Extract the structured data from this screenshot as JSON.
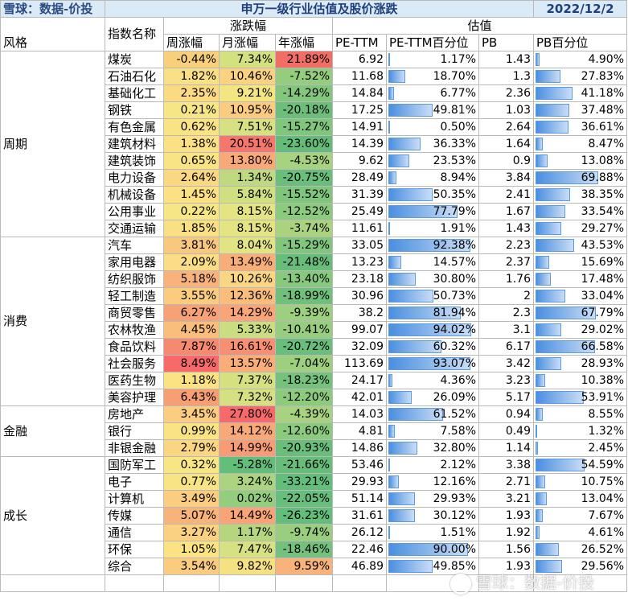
{
  "header": {
    "brand": "雪球：数据-价投",
    "title": "申万一级行业估值及股价涨跌",
    "date": "2022/12/2"
  },
  "columns": {
    "style": "风格",
    "index_name": "指数名称",
    "change_group": "涨跌幅",
    "valuation_group": "估值",
    "weekly": "周涨幅",
    "monthly": "月涨幅",
    "yearly": "年涨幅",
    "pe_ttm": "PE-TTM",
    "pe_ttm_pct": "PE-TTM百分位",
    "pb": "PB",
    "pb_pct": "PB百分位"
  },
  "groups": [
    {
      "style": "周期",
      "rows": [
        {
          "name": "煤炭",
          "week": "-0.44%",
          "month": "7.34%",
          "year": "21.89%",
          "pe": "6.92",
          "pe_pct": "1.17%",
          "pe_pct_v": 1.17,
          "pb": "1.43",
          "pb_pct": "4.90%",
          "pb_pct_v": 4.9,
          "colors": [
            "#f8cf7a",
            "#d3e27f",
            "#f26e65"
          ]
        },
        {
          "name": "石油石化",
          "week": "1.82%",
          "month": "10.46%",
          "year": "-7.52%",
          "pe": "11.68",
          "pe_pct": "18.70%",
          "pe_pct_v": 18.7,
          "pb": "1.3",
          "pb_pct": "27.83%",
          "pb_pct_v": 27.83,
          "colors": [
            "#f9e085",
            "#fad281",
            "#94cd7e"
          ]
        },
        {
          "name": "基础化工",
          "week": "2.35%",
          "month": "9.21%",
          "year": "-14.29%",
          "pe": "14.84",
          "pe_pct": "6.77%",
          "pe_pct_v": 6.77,
          "pb": "2.36",
          "pb_pct": "41.18%",
          "pb_pct_v": 41.18,
          "colors": [
            "#fadb83",
            "#f3e582",
            "#83c77c"
          ]
        },
        {
          "name": "钢铁",
          "week": "0.21%",
          "month": "10.95%",
          "year": "-20.18%",
          "pe": "17.25",
          "pe_pct": "49.81%",
          "pe_pct_v": 49.81,
          "pb": "1.03",
          "pb_pct": "37.48%",
          "pb_pct_v": 37.48,
          "colors": [
            "#f6e685",
            "#fbcc7f",
            "#6bbf7b"
          ]
        },
        {
          "name": "有色金属",
          "week": "0.62%",
          "month": "7.51%",
          "year": "-15.27%",
          "pe": "14.91",
          "pe_pct": "0.50%",
          "pe_pct_v": 0.5,
          "pb": "2.64",
          "pb_pct": "36.61%",
          "pb_pct_v": 36.61,
          "colors": [
            "#f9e485",
            "#d8e181",
            "#80c67c"
          ]
        },
        {
          "name": "建筑材料",
          "week": "1.38%",
          "month": "20.51%",
          "year": "-23.60%",
          "pe": "14.39",
          "pe_pct": "36.33%",
          "pe_pct_v": 36.33,
          "pb": "1.64",
          "pb_pct": "8.47%",
          "pb_pct_v": 8.47,
          "colors": [
            "#fbe184",
            "#f5766c",
            "#64bc7a"
          ]
        },
        {
          "name": "建筑装饰",
          "week": "0.65%",
          "month": "13.80%",
          "year": "-4.53%",
          "pe": "9.62",
          "pe_pct": "23.53%",
          "pe_pct_v": 23.53,
          "pb": "0.9",
          "pb_pct": "13.08%",
          "pb_pct_v": 13.08,
          "colors": [
            "#f9e485",
            "#f9a877",
            "#a7d27f"
          ]
        },
        {
          "name": "电力设备",
          "week": "2.64%",
          "month": "1.34%",
          "year": "-20.75%",
          "pe": "28.49",
          "pe_pct": "8.94%",
          "pe_pct_v": 8.94,
          "pb": "3.84",
          "pb_pct": "69.88%",
          "pb_pct_v": 69.88,
          "colors": [
            "#fad882",
            "#bed97f",
            "#6abe7b"
          ]
        },
        {
          "name": "机械设备",
          "week": "1.45%",
          "month": "5.84%",
          "year": "-15.52%",
          "pe": "31.39",
          "pe_pct": "50.35%",
          "pe_pct_v": 50.35,
          "pb": "2.41",
          "pb_pct": "38.35%",
          "pb_pct_v": 38.35,
          "colors": [
            "#fbe184",
            "#d0df80",
            "#7fc57c"
          ]
        },
        {
          "name": "公用事业",
          "week": "0.22%",
          "month": "8.15%",
          "year": "-12.52%",
          "pe": "25.49",
          "pe_pct": "77.79%",
          "pe_pct_v": 77.79,
          "pb": "1.67",
          "pb_pct": "33.54%",
          "pb_pct_v": 33.54,
          "colors": [
            "#f6e685",
            "#e4e482",
            "#8bcb7d"
          ]
        },
        {
          "name": "交通运输",
          "week": "1.85%",
          "month": "8.15%",
          "year": "-3.74%",
          "pe": "11.61",
          "pe_pct": "1.91%",
          "pe_pct_v": 1.91,
          "pb": "1.43",
          "pb_pct": "29.27%",
          "pb_pct_v": 29.27,
          "colors": [
            "#f9e085",
            "#e4e482",
            "#abd37f"
          ]
        }
      ]
    },
    {
      "style": "消费",
      "rows": [
        {
          "name": "汽车",
          "week": "3.81%",
          "month": "8.04%",
          "year": "-15.29%",
          "pe": "33.05",
          "pe_pct": "92.38%",
          "pe_pct_v": 92.38,
          "pb": "2.23",
          "pb_pct": "43.53%",
          "pb_pct_v": 43.53,
          "colors": [
            "#f9c87f",
            "#e2e382",
            "#80c67c"
          ]
        },
        {
          "name": "家用电器",
          "week": "2.09%",
          "month": "13.49%",
          "year": "-21.48%",
          "pe": "13.23",
          "pe_pct": "14.57%",
          "pe_pct_v": 14.57,
          "pb": "2.37",
          "pb_pct": "15.69%",
          "pb_pct_v": 15.69,
          "colors": [
            "#fadd84",
            "#f9ad78",
            "#69bd7b"
          ]
        },
        {
          "name": "纺织服饰",
          "week": "5.18%",
          "month": "10.26%",
          "year": "-13.40%",
          "pe": "23.18",
          "pe_pct": "30.80%",
          "pe_pct_v": 30.8,
          "pb": "1.76",
          "pb_pct": "17.48%",
          "pb_pct_v": 17.48,
          "colors": [
            "#f8b27a",
            "#fbd682",
            "#87c97d"
          ]
        },
        {
          "name": "轻工制造",
          "week": "3.55%",
          "month": "12.36%",
          "year": "-18.99%",
          "pe": "30.96",
          "pe_pct": "50.73%",
          "pe_pct_v": 50.73,
          "pb": "2",
          "pb_pct": "33.04%",
          "pb_pct_v": 33.04,
          "colors": [
            "#facc80",
            "#fabd7c",
            "#70c07b"
          ]
        },
        {
          "name": "商贸零售",
          "week": "6.27%",
          "month": "14.29%",
          "year": "-9.39%",
          "pe": "38.2",
          "pe_pct": "81.94%",
          "pe_pct_v": 81.94,
          "pb": "2.3",
          "pb_pct": "67.79%",
          "pb_pct_v": 67.79,
          "colors": [
            "#f7a176",
            "#f9a577",
            "#9ccf7e"
          ]
        },
        {
          "name": "农林牧渔",
          "week": "4.45%",
          "month": "5.33%",
          "year": "-10.41%",
          "pe": "99.07",
          "pe_pct": "94.02%",
          "pe_pct_v": 94.02,
          "pb": "3.1",
          "pb_pct": "29.02%",
          "pb_pct_v": 29.02,
          "colors": [
            "#f9bd7c",
            "#cadd80",
            "#97cd7e"
          ]
        },
        {
          "name": "食品饮料",
          "week": "7.87%",
          "month": "16.61%",
          "year": "-20.72%",
          "pe": "32.09",
          "pe_pct": "60.32%",
          "pe_pct_v": 60.32,
          "pb": "6.17",
          "pb_pct": "66.58%",
          "pb_pct_v": 66.58,
          "colors": [
            "#f68a71",
            "#f88f73",
            "#6abe7b"
          ]
        },
        {
          "name": "社会服务",
          "week": "8.49%",
          "month": "13.57%",
          "year": "-7.04%",
          "pe": "113.69",
          "pe_pct": "93.07%",
          "pe_pct_v": 93.07,
          "pb": "3.42",
          "pb_pct": "28.93%",
          "pb_pct_v": 28.93,
          "colors": [
            "#f8696b",
            "#f9ad78",
            "#9ecf7e"
          ]
        },
        {
          "name": "医药生物",
          "week": "1.18%",
          "month": "7.37%",
          "year": "-18.23%",
          "pe": "24.17",
          "pe_pct": "4.36%",
          "pe_pct_v": 4.36,
          "pb": "3.23",
          "pb_pct": "10.38%",
          "pb_pct_v": 10.38,
          "colors": [
            "#fbe384",
            "#d6e081",
            "#74c27c"
          ]
        },
        {
          "name": "美容护理",
          "week": "6.43%",
          "month": "7.32%",
          "year": "-12.20%",
          "pe": "42.01",
          "pe_pct": "26.09%",
          "pe_pct_v": 26.09,
          "pb": "5.17",
          "pb_pct": "53.91%",
          "pb_pct_v": 53.91,
          "colors": [
            "#f89e75",
            "#d6e081",
            "#8ccb7d"
          ]
        }
      ]
    },
    {
      "style": "金融",
      "rows": [
        {
          "name": "房地产",
          "week": "3.45%",
          "month": "27.80%",
          "year": "-4.39%",
          "pe": "14.03",
          "pe_pct": "61.52%",
          "pe_pct_v": 61.52,
          "pb": "0.94",
          "pb_pct": "8.55%",
          "pb_pct_v": 8.55,
          "colors": [
            "#facd80",
            "#f8696b",
            "#a8d27f"
          ]
        },
        {
          "name": "银行",
          "week": "0.99%",
          "month": "14.12%",
          "year": "-12.60%",
          "pe": "4.81",
          "pe_pct": "7.58%",
          "pe_pct_v": 7.58,
          "pb": "0.49",
          "pb_pct": "1.32%",
          "pb_pct_v": 1.32,
          "colors": [
            "#f9e385",
            "#f9a877",
            "#8acb7d"
          ]
        },
        {
          "name": "非银金融",
          "week": "2.79%",
          "month": "14.99%",
          "year": "-20.93%",
          "pe": "14.86",
          "pe_pct": "32.80%",
          "pe_pct_v": 32.8,
          "pb": "1.14",
          "pb_pct": "2.45%",
          "pb_pct_v": 2.45,
          "colors": [
            "#fad682",
            "#f89c76",
            "#69be7b"
          ]
        }
      ]
    },
    {
      "style": "成长",
      "rows": [
        {
          "name": "国防军工",
          "week": "0.32%",
          "month": "-5.28%",
          "year": "-21.66%",
          "pe": "53.46",
          "pe_pct": "2.12%",
          "pe_pct_v": 2.12,
          "pb": "3.38",
          "pb_pct": "54.59%",
          "pb_pct_v": 54.59,
          "colors": [
            "#f8e685",
            "#63be7b",
            "#68bd7b"
          ]
        },
        {
          "name": "电子",
          "week": "0.77%",
          "month": "3.24%",
          "year": "-33.21%",
          "pe": "29.93",
          "pe_pct": "12.16%",
          "pe_pct_v": 12.16,
          "pb": "2.71",
          "pb_pct": "10.75%",
          "pb_pct_v": 10.75,
          "colors": [
            "#f9e485",
            "#acd37f",
            "#63be7b"
          ]
        },
        {
          "name": "计算机",
          "week": "3.49%",
          "month": "0.02%",
          "year": "-22.05%",
          "pe": "51.14",
          "pe_pct": "29.93%",
          "pe_pct_v": 29.93,
          "pb": "3.21",
          "pb_pct": "13.04%",
          "pb_pct_v": 13.04,
          "colors": [
            "#facd80",
            "#94cd7e",
            "#67bd7b"
          ]
        },
        {
          "name": "传媒",
          "week": "5.07%",
          "month": "14.49%",
          "year": "-26.23%",
          "pe": "31.61",
          "pe_pct": "30.12%",
          "pe_pct_v": 30.12,
          "pb": "1.93",
          "pb_pct": "7.67%",
          "pb_pct_v": 7.67,
          "colors": [
            "#f8b37a",
            "#f9a377",
            "#63be7b"
          ]
        },
        {
          "name": "通信",
          "week": "3.27%",
          "month": "1.17%",
          "year": "-9.74%",
          "pe": "26.12",
          "pe_pct": "1.51%",
          "pe_pct_v": 1.51,
          "pb": "1.92",
          "pb_pct": "4.61%",
          "pb_pct_v": 4.61,
          "colors": [
            "#fad081",
            "#b5d67f",
            "#99ce7e"
          ]
        },
        {
          "name": "环保",
          "week": "1.05%",
          "month": "7.47%",
          "year": "-18.46%",
          "pe": "22.46",
          "pe_pct": "90.00%",
          "pe_pct_v": 90.0,
          "pb": "1.56",
          "pb_pct": "26.52%",
          "pb_pct_v": 26.52,
          "colors": [
            "#fbe384",
            "#d8e181",
            "#73c17c"
          ]
        },
        {
          "name": "综合",
          "week": "3.54%",
          "month": "9.82%",
          "year": "9.59%",
          "pe": "46.89",
          "pe_pct": "49.85%",
          "pe_pct_v": 49.85,
          "pb": "1.93",
          "pb_pct": "29.56%",
          "pb_pct_v": 29.56,
          "colors": [
            "#facc80",
            "#f5e182",
            "#f8b27a"
          ]
        }
      ]
    }
  ],
  "watermark": "雪球：数据-价投"
}
